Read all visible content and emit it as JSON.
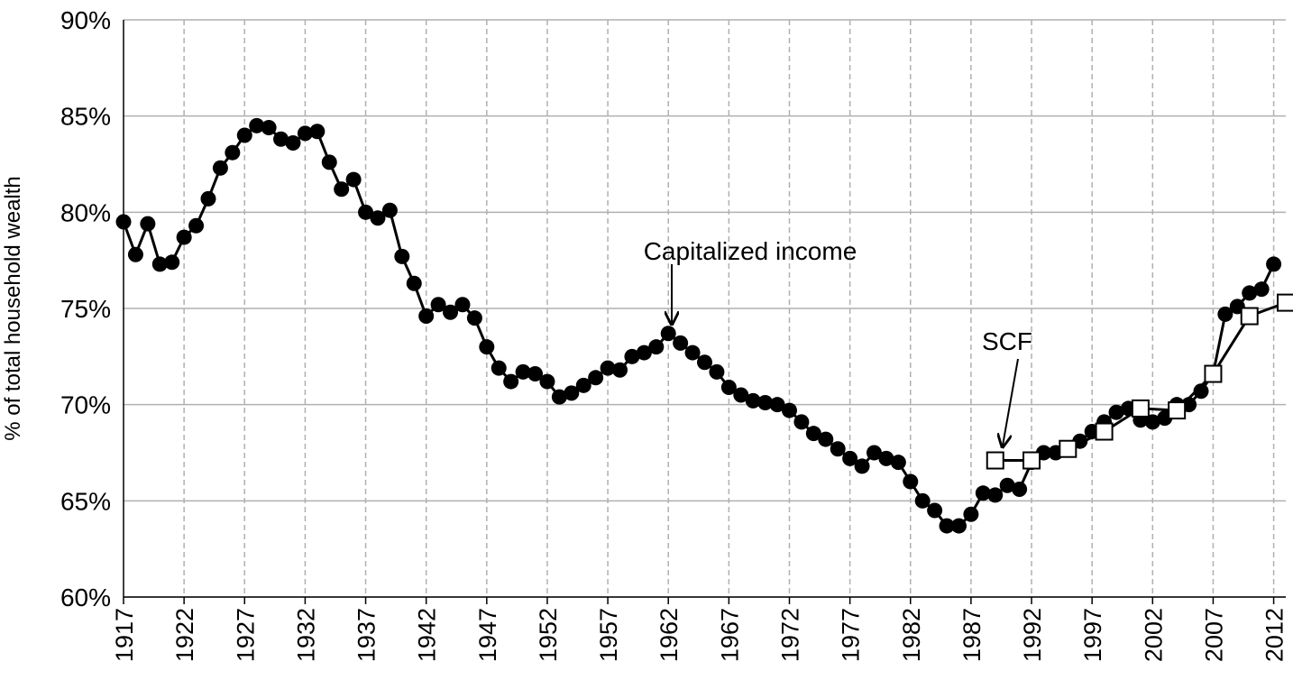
{
  "chart_data": {
    "type": "line",
    "ylabel": "% of total household wealth",
    "annotations": [
      "Capitalized income",
      "SCF"
    ],
    "xlim": [
      1917,
      2013
    ],
    "xticks": [
      1917,
      1922,
      1927,
      1932,
      1937,
      1942,
      1947,
      1952,
      1957,
      1962,
      1967,
      1972,
      1977,
      1982,
      1987,
      1992,
      1997,
      2002,
      2007,
      2012
    ],
    "ylim": [
      60,
      90
    ],
    "yticks": [
      {
        "value": 60,
        "label": "60%"
      },
      {
        "value": 65,
        "label": "65%"
      },
      {
        "value": 70,
        "label": "70%"
      },
      {
        "value": 75,
        "label": "75%"
      },
      {
        "value": 80,
        "label": "80%"
      },
      {
        "value": 85,
        "label": "85%"
      },
      {
        "value": 90,
        "label": "90%"
      }
    ],
    "grid": true,
    "series": [
      {
        "color": "#000000",
        "marker": "circle",
        "x": [
          1917,
          1918,
          1919,
          1920,
          1921,
          1922,
          1923,
          1924,
          1925,
          1926,
          1927,
          1928,
          1929,
          1930,
          1931,
          1932,
          1933,
          1934,
          1935,
          1936,
          1937,
          1938,
          1939,
          1940,
          1941,
          1942,
          1943,
          1944,
          1945,
          1946,
          1947,
          1948,
          1949,
          1950,
          1951,
          1952,
          1953,
          1954,
          1955,
          1956,
          1957,
          1958,
          1959,
          1960,
          1961,
          1962,
          1963,
          1964,
          1965,
          1966,
          1967,
          1968,
          1969,
          1970,
          1971,
          1972,
          1973,
          1974,
          1975,
          1976,
          1977,
          1978,
          1979,
          1980,
          1981,
          1982,
          1983,
          1984,
          1985,
          1986,
          1987,
          1988,
          1989,
          1990,
          1991,
          1992,
          1993,
          1994,
          1995,
          1996,
          1997,
          1998,
          1999,
          2000,
          2001,
          2002,
          2003,
          2004,
          2005,
          2006,
          2007,
          2008,
          2009,
          2010,
          2011,
          2012
        ],
        "values": [
          79.5,
          77.8,
          79.4,
          77.3,
          77.4,
          78.7,
          79.3,
          80.7,
          82.3,
          83.1,
          84.0,
          84.5,
          84.4,
          83.8,
          83.6,
          84.1,
          84.2,
          82.6,
          81.2,
          81.7,
          80.0,
          79.7,
          80.1,
          77.7,
          76.3,
          74.6,
          75.2,
          74.8,
          75.2,
          74.5,
          73.0,
          71.9,
          71.2,
          71.7,
          71.6,
          71.2,
          70.4,
          70.6,
          71.0,
          71.4,
          71.9,
          71.8,
          72.5,
          72.7,
          73.0,
          73.7,
          73.2,
          72.7,
          72.2,
          71.7,
          70.9,
          70.5,
          70.2,
          70.1,
          70.0,
          69.7,
          69.1,
          68.5,
          68.2,
          67.7,
          67.2,
          66.8,
          67.5,
          67.2,
          67.0,
          66.0,
          65.0,
          64.5,
          63.7,
          63.7,
          64.3,
          65.4,
          65.3,
          65.8,
          65.6,
          67.0,
          67.5,
          67.5,
          67.7,
          68.1,
          68.6,
          69.1,
          69.6,
          69.8,
          69.2,
          69.1,
          69.3,
          70.0,
          70.0,
          70.7,
          71.6,
          74.7,
          75.1,
          75.8,
          76.0,
          77.3
        ]
      },
      {
        "color": "#000000",
        "marker": "square",
        "x": [
          1989,
          1992,
          1995,
          1998,
          2001,
          2004,
          2007,
          2010,
          2013
        ],
        "values": [
          67.1,
          67.1,
          67.7,
          68.6,
          69.8,
          69.7,
          71.6,
          74.6,
          75.3
        ]
      }
    ]
  }
}
